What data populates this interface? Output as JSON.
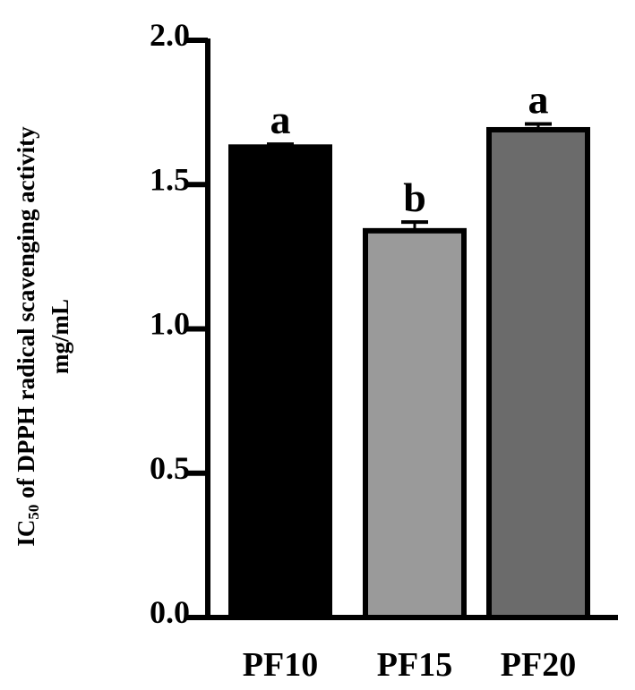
{
  "chart_data": {
    "type": "bar",
    "categories": [
      "PF10",
      "PF15",
      "PF20"
    ],
    "values": [
      1.63,
      1.34,
      1.69
    ],
    "errors": [
      0.01,
      0.03,
      0.02
    ],
    "significance": [
      "a",
      "b",
      "a"
    ],
    "bar_colors": [
      "#000000",
      "#9a9a9a",
      "#6b6b6b"
    ],
    "ylim": [
      0,
      2.0
    ],
    "yticks": [
      "0.0",
      "0.5",
      "1.0",
      "1.5",
      "2.0"
    ],
    "ylabel": {
      "prefix": "IC",
      "subscript": "50",
      "rest": " of DPPH radical scavenging activity",
      "unit": "mg/mL"
    },
    "title": "",
    "xlabel": "",
    "grid": false,
    "legend": "none"
  }
}
